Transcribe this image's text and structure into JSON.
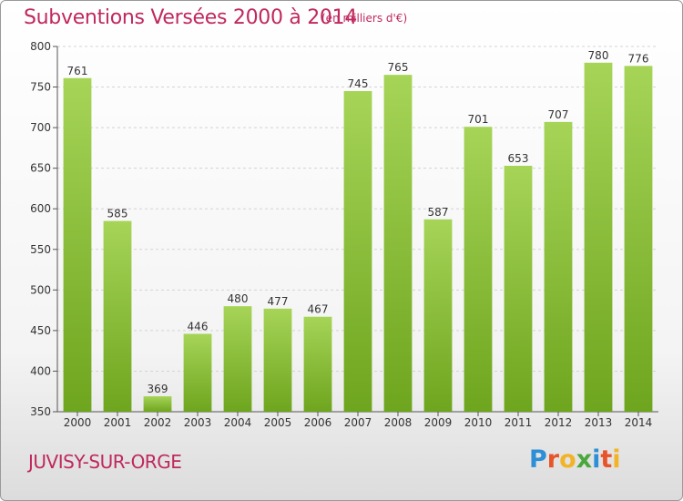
{
  "header": {
    "title": "Subventions Versées 2000 à 2014",
    "subtitle": "(en milliers d'€)"
  },
  "footer": {
    "commune": "JUVISY-SUR-ORGE",
    "logo_text": "Proxiti"
  },
  "colors": {
    "title": "#c0285e",
    "bar_light": "#a6d457",
    "bar_dark": "#6ea51e",
    "grid": "#d4d4d4",
    "logo_letters": [
      "#2e8fd6",
      "#e8542a",
      "#f2b327",
      "#4aa73c",
      "#2e8fd6",
      "#e8542a",
      "#f2b327"
    ]
  },
  "chart_data": {
    "type": "bar",
    "title": "Subventions Versées 2000 à 2014",
    "subtitle": "(en milliers d'€)",
    "xlabel": "",
    "ylabel": "",
    "categories": [
      "2000",
      "2001",
      "2002",
      "2003",
      "2004",
      "2005",
      "2006",
      "2007",
      "2008",
      "2009",
      "2010",
      "2011",
      "2012",
      "2013",
      "2014"
    ],
    "values": [
      761,
      585,
      369,
      446,
      480,
      477,
      467,
      745,
      765,
      587,
      701,
      653,
      707,
      780,
      776
    ],
    "ylim": [
      350,
      800
    ],
    "yticks": [
      350,
      400,
      450,
      500,
      550,
      600,
      650,
      700,
      750,
      800
    ],
    "grid": "horizontal dashed",
    "legend": "none"
  }
}
